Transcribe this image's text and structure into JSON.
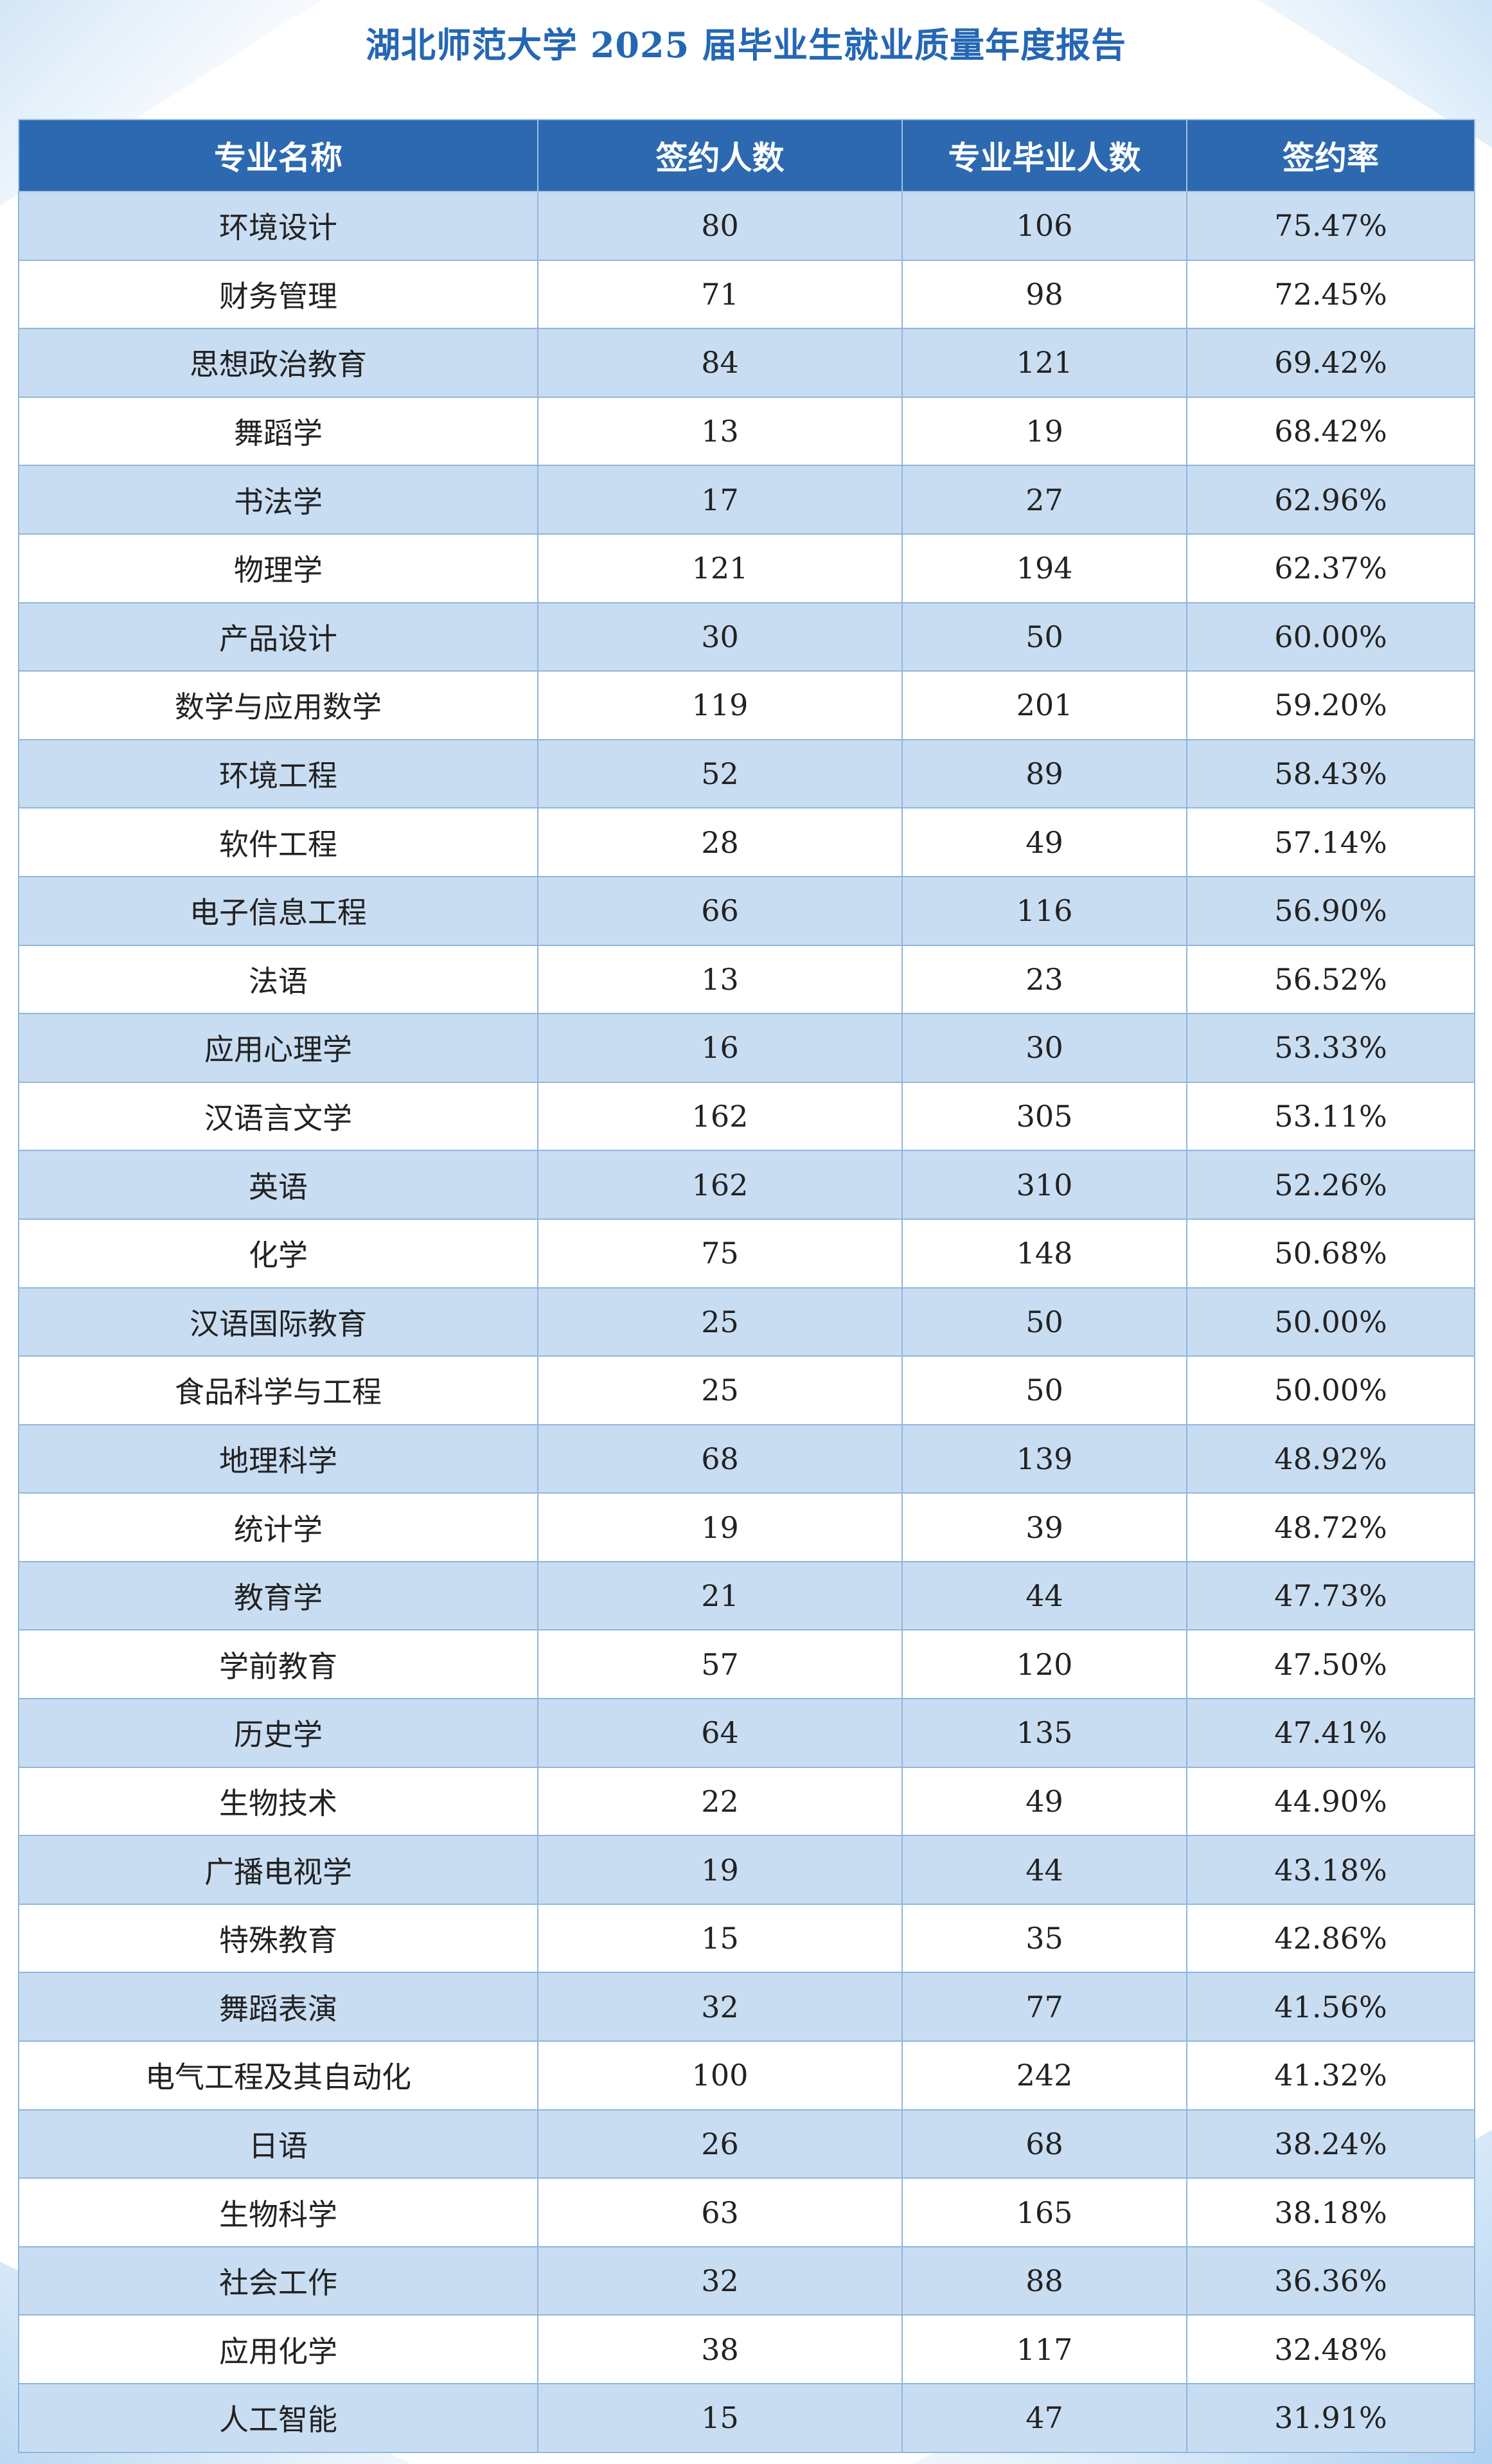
{
  "title": "湖北师范大学 2025 届毕业生就业质量年度报告",
  "table": {
    "headers": [
      "专业名称",
      "签约人数",
      "专业毕业人数",
      "签约率"
    ],
    "rows": [
      [
        "环境设计",
        "80",
        "106",
        "75.47%"
      ],
      [
        "财务管理",
        "71",
        "98",
        "72.45%"
      ],
      [
        "思想政治教育",
        "84",
        "121",
        "69.42%"
      ],
      [
        "舞蹈学",
        "13",
        "19",
        "68.42%"
      ],
      [
        "书法学",
        "17",
        "27",
        "62.96%"
      ],
      [
        "物理学",
        "121",
        "194",
        "62.37%"
      ],
      [
        "产品设计",
        "30",
        "50",
        "60.00%"
      ],
      [
        "数学与应用数学",
        "119",
        "201",
        "59.20%"
      ],
      [
        "环境工程",
        "52",
        "89",
        "58.43%"
      ],
      [
        "软件工程",
        "28",
        "49",
        "57.14%"
      ],
      [
        "电子信息工程",
        "66",
        "116",
        "56.90%"
      ],
      [
        "法语",
        "13",
        "23",
        "56.52%"
      ],
      [
        "应用心理学",
        "16",
        "30",
        "53.33%"
      ],
      [
        "汉语言文学",
        "162",
        "305",
        "53.11%"
      ],
      [
        "英语",
        "162",
        "310",
        "52.26%"
      ],
      [
        "化学",
        "75",
        "148",
        "50.68%"
      ],
      [
        "汉语国际教育",
        "25",
        "50",
        "50.00%"
      ],
      [
        "食品科学与工程",
        "25",
        "50",
        "50.00%"
      ],
      [
        "地理科学",
        "68",
        "139",
        "48.92%"
      ],
      [
        "统计学",
        "19",
        "39",
        "48.72%"
      ],
      [
        "教育学",
        "21",
        "44",
        "47.73%"
      ],
      [
        "学前教育",
        "57",
        "120",
        "47.50%"
      ],
      [
        "历史学",
        "64",
        "135",
        "47.41%"
      ],
      [
        "生物技术",
        "22",
        "49",
        "44.90%"
      ],
      [
        "广播电视学",
        "19",
        "44",
        "43.18%"
      ],
      [
        "特殊教育",
        "15",
        "35",
        "42.86%"
      ],
      [
        "舞蹈表演",
        "32",
        "77",
        "41.56%"
      ],
      [
        "电气工程及其自动化",
        "100",
        "242",
        "41.32%"
      ],
      [
        "日语",
        "26",
        "68",
        "38.24%"
      ],
      [
        "生物科学",
        "63",
        "165",
        "38.18%"
      ],
      [
        "社会工作",
        "32",
        "88",
        "36.36%"
      ],
      [
        "应用化学",
        "38",
        "117",
        "32.48%"
      ],
      [
        "人工智能",
        "15",
        "47",
        "31.91%"
      ]
    ]
  }
}
